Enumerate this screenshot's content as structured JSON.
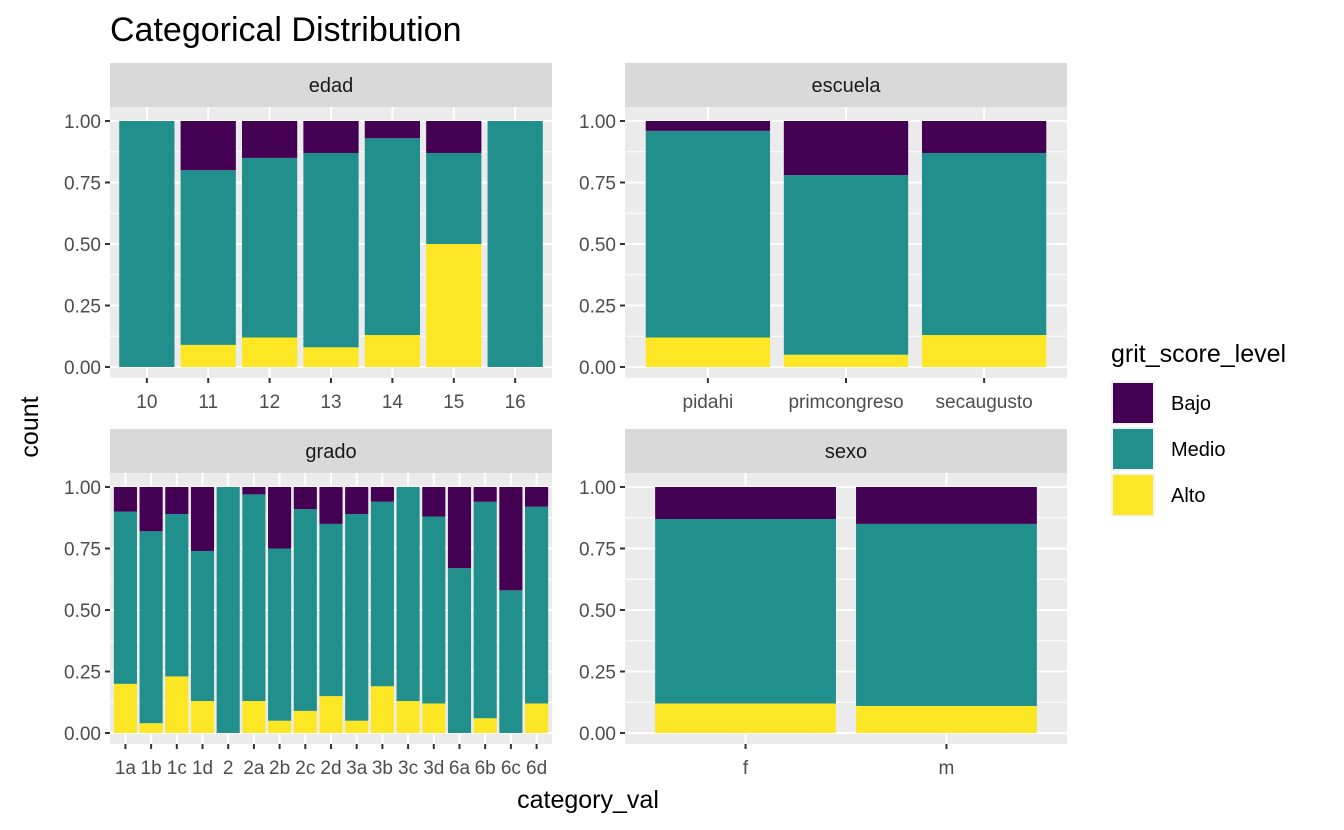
{
  "title": "Categorical Distribution",
  "xlabel": "category_val",
  "ylabel": "count",
  "legend_title": "grit_score_level",
  "legend_position": "right",
  "levels": [
    "Bajo",
    "Medio",
    "Alto"
  ],
  "colors": {
    "Bajo": "#440154",
    "Medio": "#21908C",
    "Alto": "#FDE725"
  },
  "y_ticks": [
    "0.00",
    "0.25",
    "0.50",
    "0.75",
    "1.00"
  ],
  "chart_data": [
    {
      "type": "bar",
      "stacked": "fill",
      "panel": "edad",
      "categories": [
        "10",
        "11",
        "12",
        "13",
        "14",
        "15",
        "16"
      ],
      "ylim": [
        0,
        1
      ],
      "series": [
        {
          "name": "Alto",
          "values": [
            0.0,
            0.09,
            0.12,
            0.08,
            0.13,
            0.5,
            0.0
          ]
        },
        {
          "name": "Medio",
          "values": [
            1.0,
            0.71,
            0.73,
            0.79,
            0.8,
            0.37,
            1.0
          ]
        },
        {
          "name": "Bajo",
          "values": [
            0.0,
            0.2,
            0.15,
            0.13,
            0.07,
            0.13,
            0.0
          ]
        }
      ]
    },
    {
      "type": "bar",
      "stacked": "fill",
      "panel": "escuela",
      "categories": [
        "pidahi",
        "primcongreso",
        "secaugusto"
      ],
      "ylim": [
        0,
        1
      ],
      "series": [
        {
          "name": "Alto",
          "values": [
            0.12,
            0.05,
            0.13
          ]
        },
        {
          "name": "Medio",
          "values": [
            0.84,
            0.73,
            0.74
          ]
        },
        {
          "name": "Bajo",
          "values": [
            0.04,
            0.22,
            0.13
          ]
        }
      ]
    },
    {
      "type": "bar",
      "stacked": "fill",
      "panel": "grado",
      "categories": [
        "1a",
        "1b",
        "1c",
        "1d",
        "2",
        "2a",
        "2b",
        "2c",
        "2d",
        "3a",
        "3b",
        "3c",
        "3d",
        "6a",
        "6b",
        "6c",
        "6d"
      ],
      "ylim": [
        0,
        1
      ],
      "series": [
        {
          "name": "Alto",
          "values": [
            0.2,
            0.04,
            0.23,
            0.13,
            0.0,
            0.13,
            0.05,
            0.09,
            0.15,
            0.05,
            0.19,
            0.13,
            0.12,
            0.0,
            0.06,
            0.0,
            0.12
          ]
        },
        {
          "name": "Medio",
          "values": [
            0.7,
            0.78,
            0.66,
            0.61,
            1.0,
            0.84,
            0.7,
            0.82,
            0.7,
            0.84,
            0.75,
            0.87,
            0.76,
            0.67,
            0.88,
            0.58,
            0.8
          ]
        },
        {
          "name": "Bajo",
          "values": [
            0.1,
            0.18,
            0.11,
            0.26,
            0.0,
            0.03,
            0.25,
            0.09,
            0.15,
            0.11,
            0.06,
            0.0,
            0.12,
            0.33,
            0.06,
            0.42,
            0.08
          ]
        }
      ]
    },
    {
      "type": "bar",
      "stacked": "fill",
      "panel": "sexo",
      "categories": [
        "f",
        "m"
      ],
      "ylim": [
        0,
        1
      ],
      "series": [
        {
          "name": "Alto",
          "values": [
            0.12,
            0.11
          ]
        },
        {
          "name": "Medio",
          "values": [
            0.75,
            0.74
          ]
        },
        {
          "name": "Bajo",
          "values": [
            0.13,
            0.15
          ]
        }
      ]
    }
  ]
}
